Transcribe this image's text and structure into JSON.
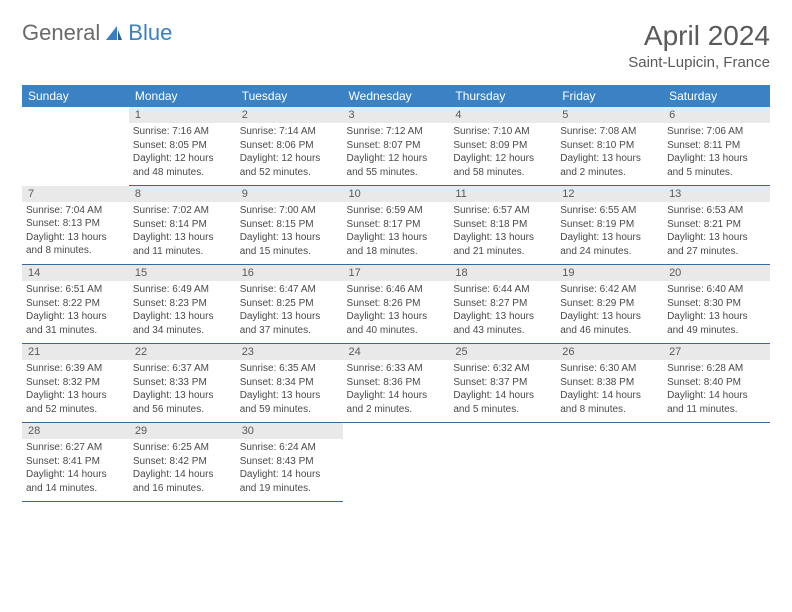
{
  "brand": {
    "part1": "General",
    "part2": "Blue"
  },
  "title": "April 2024",
  "location": "Saint-Lupicin, France",
  "colors": {
    "header_bg": "#3a82c4",
    "header_text": "#ffffff",
    "daynum_bg": "#e9e9e9",
    "text": "#4a4a4a",
    "rule": "#3a6a9a",
    "logo_blue": "#3a7fc4",
    "logo_gray": "#6a6a6a",
    "page_bg": "#ffffff"
  },
  "typography": {
    "title_fontsize": 28,
    "location_fontsize": 15,
    "dayheader_fontsize": 12,
    "daynum_fontsize": 11,
    "body_fontsize": 10
  },
  "layout": {
    "columns": 7,
    "first_day_column_index": 1,
    "days_in_month": 30
  },
  "day_headers": [
    "Sunday",
    "Monday",
    "Tuesday",
    "Wednesday",
    "Thursday",
    "Friday",
    "Saturday"
  ],
  "days": [
    {
      "n": 1,
      "sunrise": "7:16 AM",
      "sunset": "8:05 PM",
      "daylight": "12 hours and 48 minutes."
    },
    {
      "n": 2,
      "sunrise": "7:14 AM",
      "sunset": "8:06 PM",
      "daylight": "12 hours and 52 minutes."
    },
    {
      "n": 3,
      "sunrise": "7:12 AM",
      "sunset": "8:07 PM",
      "daylight": "12 hours and 55 minutes."
    },
    {
      "n": 4,
      "sunrise": "7:10 AM",
      "sunset": "8:09 PM",
      "daylight": "12 hours and 58 minutes."
    },
    {
      "n": 5,
      "sunrise": "7:08 AM",
      "sunset": "8:10 PM",
      "daylight": "13 hours and 2 minutes."
    },
    {
      "n": 6,
      "sunrise": "7:06 AM",
      "sunset": "8:11 PM",
      "daylight": "13 hours and 5 minutes."
    },
    {
      "n": 7,
      "sunrise": "7:04 AM",
      "sunset": "8:13 PM",
      "daylight": "13 hours and 8 minutes."
    },
    {
      "n": 8,
      "sunrise": "7:02 AM",
      "sunset": "8:14 PM",
      "daylight": "13 hours and 11 minutes."
    },
    {
      "n": 9,
      "sunrise": "7:00 AM",
      "sunset": "8:15 PM",
      "daylight": "13 hours and 15 minutes."
    },
    {
      "n": 10,
      "sunrise": "6:59 AM",
      "sunset": "8:17 PM",
      "daylight": "13 hours and 18 minutes."
    },
    {
      "n": 11,
      "sunrise": "6:57 AM",
      "sunset": "8:18 PM",
      "daylight": "13 hours and 21 minutes."
    },
    {
      "n": 12,
      "sunrise": "6:55 AM",
      "sunset": "8:19 PM",
      "daylight": "13 hours and 24 minutes."
    },
    {
      "n": 13,
      "sunrise": "6:53 AM",
      "sunset": "8:21 PM",
      "daylight": "13 hours and 27 minutes."
    },
    {
      "n": 14,
      "sunrise": "6:51 AM",
      "sunset": "8:22 PM",
      "daylight": "13 hours and 31 minutes."
    },
    {
      "n": 15,
      "sunrise": "6:49 AM",
      "sunset": "8:23 PM",
      "daylight": "13 hours and 34 minutes."
    },
    {
      "n": 16,
      "sunrise": "6:47 AM",
      "sunset": "8:25 PM",
      "daylight": "13 hours and 37 minutes."
    },
    {
      "n": 17,
      "sunrise": "6:46 AM",
      "sunset": "8:26 PM",
      "daylight": "13 hours and 40 minutes."
    },
    {
      "n": 18,
      "sunrise": "6:44 AM",
      "sunset": "8:27 PM",
      "daylight": "13 hours and 43 minutes."
    },
    {
      "n": 19,
      "sunrise": "6:42 AM",
      "sunset": "8:29 PM",
      "daylight": "13 hours and 46 minutes."
    },
    {
      "n": 20,
      "sunrise": "6:40 AM",
      "sunset": "8:30 PM",
      "daylight": "13 hours and 49 minutes."
    },
    {
      "n": 21,
      "sunrise": "6:39 AM",
      "sunset": "8:32 PM",
      "daylight": "13 hours and 52 minutes."
    },
    {
      "n": 22,
      "sunrise": "6:37 AM",
      "sunset": "8:33 PM",
      "daylight": "13 hours and 56 minutes."
    },
    {
      "n": 23,
      "sunrise": "6:35 AM",
      "sunset": "8:34 PM",
      "daylight": "13 hours and 59 minutes."
    },
    {
      "n": 24,
      "sunrise": "6:33 AM",
      "sunset": "8:36 PM",
      "daylight": "14 hours and 2 minutes."
    },
    {
      "n": 25,
      "sunrise": "6:32 AM",
      "sunset": "8:37 PM",
      "daylight": "14 hours and 5 minutes."
    },
    {
      "n": 26,
      "sunrise": "6:30 AM",
      "sunset": "8:38 PM",
      "daylight": "14 hours and 8 minutes."
    },
    {
      "n": 27,
      "sunrise": "6:28 AM",
      "sunset": "8:40 PM",
      "daylight": "14 hours and 11 minutes."
    },
    {
      "n": 28,
      "sunrise": "6:27 AM",
      "sunset": "8:41 PM",
      "daylight": "14 hours and 14 minutes."
    },
    {
      "n": 29,
      "sunrise": "6:25 AM",
      "sunset": "8:42 PM",
      "daylight": "14 hours and 16 minutes."
    },
    {
      "n": 30,
      "sunrise": "6:24 AM",
      "sunset": "8:43 PM",
      "daylight": "14 hours and 19 minutes."
    }
  ],
  "labels": {
    "sunrise": "Sunrise:",
    "sunset": "Sunset:",
    "daylight": "Daylight:"
  }
}
